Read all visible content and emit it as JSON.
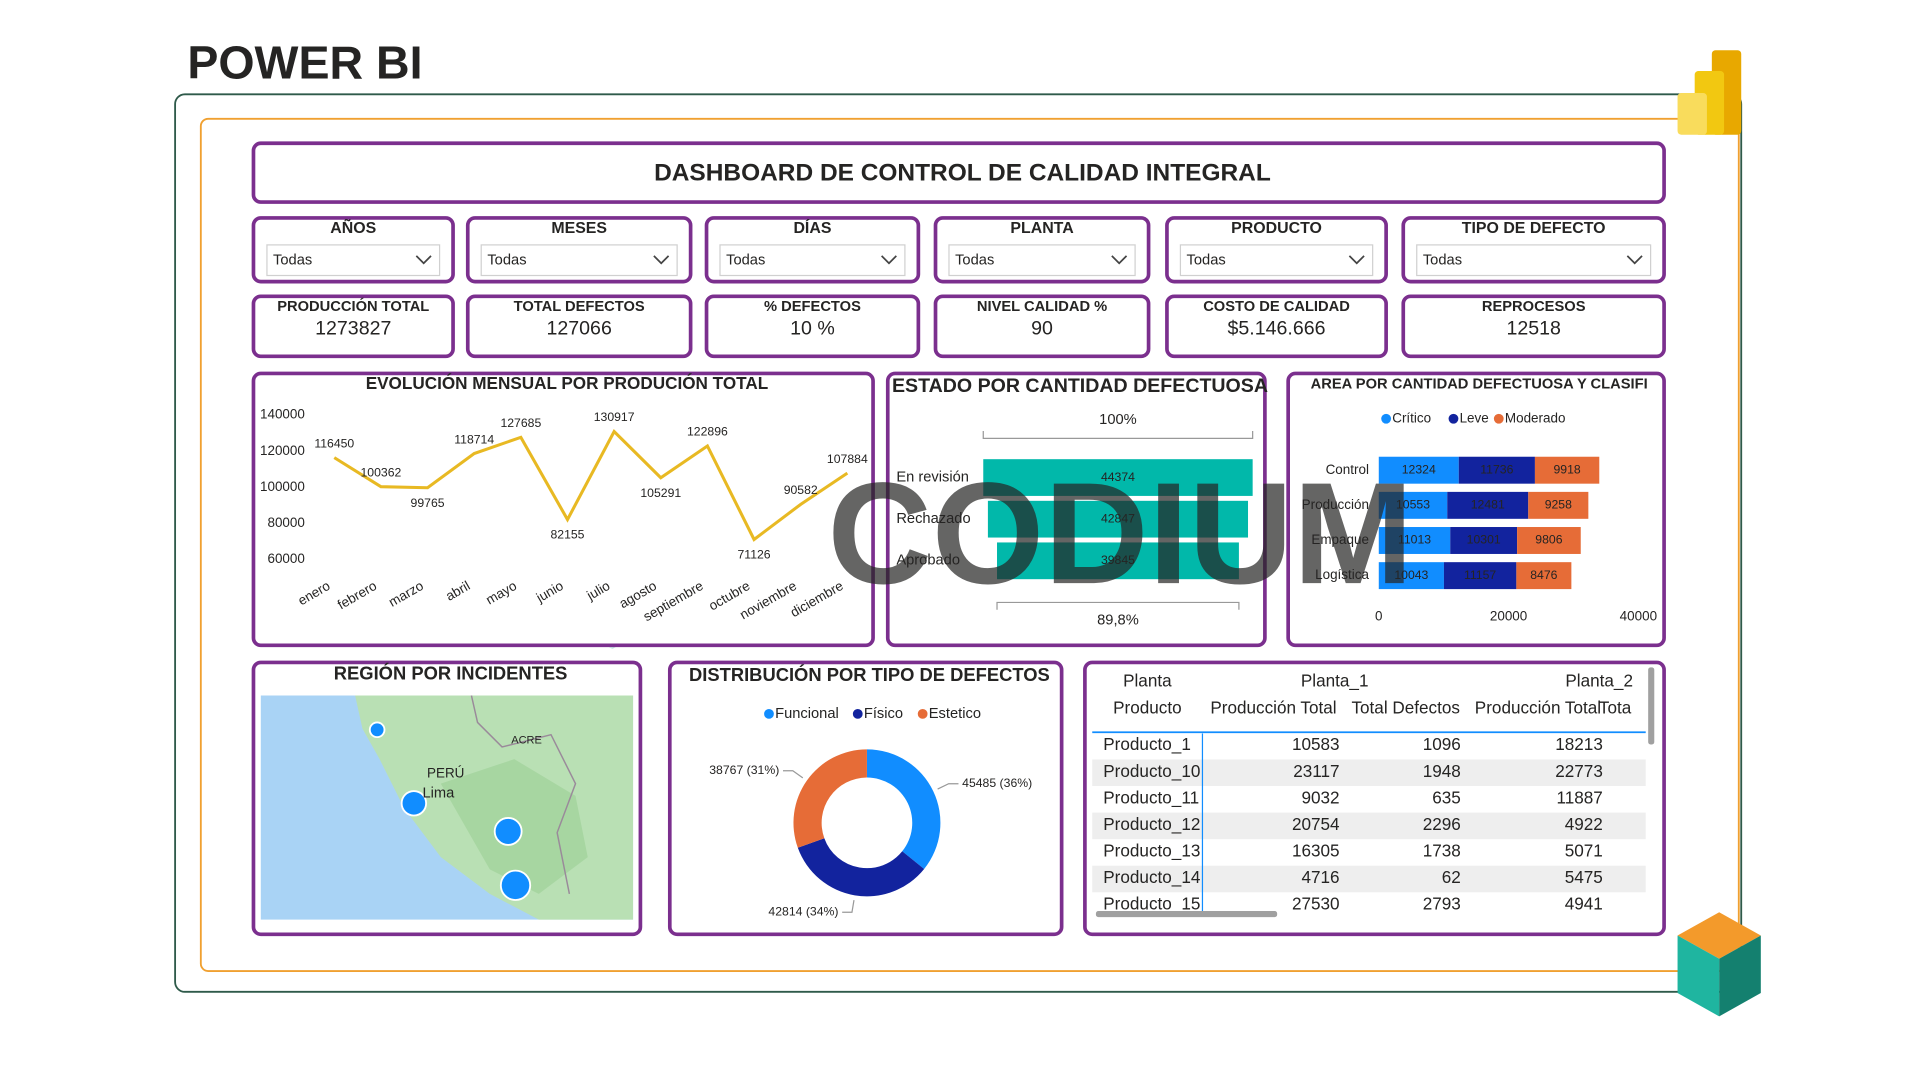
{
  "header": {
    "brand": "POWER BI",
    "title": "DASHBOARD DE CONTROL DE CALIDAD INTEGRAL",
    "watermark": "CODIUM"
  },
  "filters": [
    {
      "label": "AÑOS",
      "value": "Todas"
    },
    {
      "label": "MESES",
      "value": "Todas"
    },
    {
      "label": "DÍAS",
      "value": "Todas"
    },
    {
      "label": "PLANTA",
      "value": "Todas"
    },
    {
      "label": "PRODUCTO",
      "value": "Todas"
    },
    {
      "label": "TIPO DE DEFECTO",
      "value": "Todas"
    }
  ],
  "kpis": [
    {
      "label": "PRODUCCIÓN TOTAL",
      "value": "1273827"
    },
    {
      "label": "TOTAL DEFECTOS",
      "value": "127066"
    },
    {
      "label": "% DEFECTOS",
      "value": "10 %"
    },
    {
      "label": "NIVEL CALIDAD %",
      "value": "90"
    },
    {
      "label": "COSTO DE CALIDAD",
      "value": "$5.146.666"
    },
    {
      "label": "REPROCESOS",
      "value": "12518"
    }
  ],
  "chart_data": [
    {
      "type": "line",
      "title": "EVOLUCIÓN MENSUAL POR PRODUCIÓN TOTAL",
      "categories": [
        "enero",
        "febrero",
        "marzo",
        "abril",
        "mayo",
        "junio",
        "julio",
        "agosto",
        "septiembre",
        "octubre",
        "noviembre",
        "diciembre"
      ],
      "values": [
        116450,
        100362,
        99765,
        118714,
        127685,
        82155,
        130917,
        105291,
        122896,
        71126,
        90582,
        107884
      ],
      "color": "#e8b923",
      "ylim": [
        50000,
        145000
      ],
      "yticks": [
        60000,
        80000,
        100000,
        120000,
        140000
      ]
    },
    {
      "type": "funnel",
      "title": "ESTADO POR CANTIDAD DEFECTUOSA",
      "categories": [
        "En revisión",
        "Rechazado",
        "Aprobado"
      ],
      "values": [
        44374,
        42847,
        39845
      ],
      "color": "#01b8aa",
      "top_label": "100%",
      "bottom_label": "89,8%"
    },
    {
      "type": "stacked_bar",
      "title": "AREA POR CANTIDAD DEFECTUOSA Y CLASIFI",
      "orientation": "horizontal",
      "categories": [
        "Control",
        "Producción",
        "Empaque",
        "Logística"
      ],
      "series": [
        {
          "name": "Crítico",
          "color": "#118dff",
          "values": [
            12324,
            10553,
            11013,
            10043
          ]
        },
        {
          "name": "Leve",
          "color": "#12239e",
          "values": [
            11736,
            12481,
            10301,
            11157
          ]
        },
        {
          "name": "Moderado",
          "color": "#e66c37",
          "values": [
            9918,
            9258,
            9806,
            8476
          ]
        }
      ],
      "xlim": [
        0,
        40000
      ],
      "xticks": [
        0,
        20000,
        40000
      ]
    },
    {
      "type": "pie",
      "title": "DISTRIBUCIÓN POR TIPO DE DEFECTOS",
      "donut": true,
      "categories": [
        "Funcional",
        "Físico",
        "Estetico"
      ],
      "values": [
        45485,
        42814,
        38767
      ],
      "value_labels": [
        "45485 (36%)",
        "42814 (34%)",
        "38767 (31%)"
      ],
      "colors": [
        "#118dff",
        "#12239e",
        "#e66c37"
      ]
    }
  ],
  "map": {
    "title": "REGIÓN POR INCIDENTES",
    "labels": [
      "PERÚ",
      "Lima",
      "ACRE"
    ]
  },
  "table": {
    "header1": [
      "Planta",
      "Planta_1",
      "Planta_2"
    ],
    "header2": [
      "Producto",
      "Producción Total",
      "Total Defectos",
      "Producción Total",
      "Tota"
    ],
    "rows": [
      [
        "Producto_1",
        10583,
        1096,
        18213
      ],
      [
        "Producto_10",
        23117,
        1948,
        22773
      ],
      [
        "Producto_11",
        9032,
        635,
        11887
      ],
      [
        "Producto_12",
        20754,
        2296,
        4922
      ],
      [
        "Producto_13",
        16305,
        1738,
        5071
      ],
      [
        "Producto_14",
        4716,
        62,
        5475
      ],
      [
        "Producto_15",
        27530,
        2793,
        4941
      ]
    ]
  }
}
